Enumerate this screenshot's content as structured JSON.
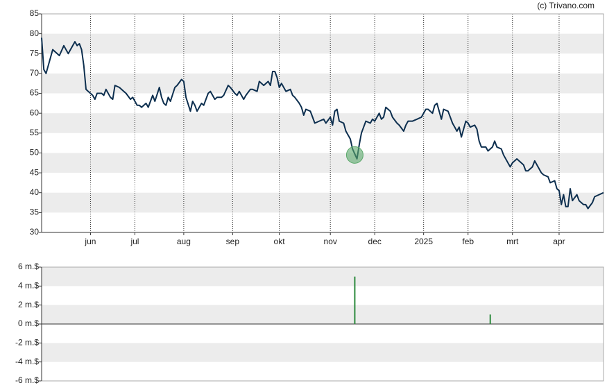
{
  "chart_data": [
    {
      "type": "line",
      "credit": "(c) Trivano.com",
      "xlim": [
        0,
        253
      ],
      "ylim": [
        30,
        85
      ],
      "yticks": [
        30,
        35,
        40,
        45,
        50,
        55,
        60,
        65,
        70,
        75,
        80,
        85
      ],
      "xticks": [
        {
          "value": 22,
          "label": "jun"
        },
        {
          "value": 42,
          "label": "jul"
        },
        {
          "value": 64,
          "label": "aug"
        },
        {
          "value": 86,
          "label": "sep"
        },
        {
          "value": 107,
          "label": "okt"
        },
        {
          "value": 130,
          "label": "nov"
        },
        {
          "value": 150,
          "label": "dec"
        },
        {
          "value": 172,
          "label": "2025"
        },
        {
          "value": 192,
          "label": "feb"
        },
        {
          "value": 212,
          "label": "mrt"
        },
        {
          "value": 233,
          "label": "apr"
        }
      ],
      "xgrid": true,
      "series": [
        {
          "color": "#0d2f4f",
          "x": [
            0,
            1,
            2,
            4,
            5,
            7,
            8,
            10,
            12,
            13,
            15,
            16,
            17,
            18,
            19,
            20,
            21,
            23,
            24,
            25,
            27,
            28,
            29,
            31,
            32,
            33,
            35,
            37,
            38,
            40,
            41,
            43,
            44,
            45,
            47,
            48,
            50,
            51,
            53,
            54,
            55,
            56,
            57,
            58,
            60,
            61,
            63,
            64,
            65,
            67,
            68,
            69,
            70,
            72,
            73,
            75,
            76,
            78,
            79,
            81,
            82,
            84,
            85,
            87,
            88,
            89,
            91,
            92,
            94,
            95,
            97,
            98,
            100,
            102,
            103,
            104,
            105,
            106,
            107,
            108,
            110,
            112,
            113,
            114,
            116,
            117,
            118,
            119,
            121,
            122,
            123,
            125,
            127,
            128,
            130,
            131,
            132,
            133,
            134,
            136,
            137,
            139,
            140,
            142,
            143,
            144,
            145,
            146,
            148,
            149,
            150,
            152,
            153,
            154,
            155,
            157,
            158,
            160,
            161,
            163,
            164,
            165,
            167,
            169,
            171,
            173,
            174,
            176,
            177,
            178,
            180,
            181,
            183,
            184,
            185,
            187,
            188,
            189,
            191,
            192,
            193,
            195,
            196,
            197,
            198,
            200,
            201,
            203,
            204,
            205,
            207,
            208,
            210,
            211,
            212,
            214,
            215,
            217,
            218,
            219,
            221,
            222,
            223,
            225,
            226,
            228,
            229,
            231,
            232,
            233,
            234,
            235,
            236,
            237,
            238,
            239,
            241,
            242,
            244,
            245,
            246,
            248,
            249,
            251,
            253
          ],
          "values": [
            79,
            71,
            70,
            74,
            76,
            75,
            74.5,
            77,
            75,
            76,
            78,
            77,
            77.5,
            76,
            72,
            66,
            65.5,
            64.5,
            63.5,
            65,
            65,
            64.5,
            66,
            64,
            63.5,
            67,
            66.5,
            65.5,
            65,
            63.5,
            64,
            62,
            62,
            61.5,
            62.5,
            61.5,
            64.5,
            63,
            66.5,
            64,
            62.5,
            62,
            64,
            63,
            66.5,
            67,
            68.5,
            68,
            64,
            60.5,
            63,
            62,
            60.5,
            62.5,
            62,
            65,
            65.5,
            63.5,
            64,
            64,
            64.5,
            67,
            66.5,
            65,
            64.5,
            65.5,
            63.5,
            64.5,
            66,
            66,
            65.5,
            68,
            67,
            68,
            67,
            70.5,
            70.5,
            69,
            66.5,
            67.5,
            65.5,
            66,
            64.5,
            64,
            62.5,
            61.5,
            59.5,
            61,
            60.5,
            59,
            57.5,
            58,
            58.5,
            57.5,
            59,
            57,
            60.5,
            61,
            58,
            57.5,
            55.5,
            53.5,
            51,
            48.5,
            52,
            55,
            56.5,
            58,
            57.5,
            58.5,
            58,
            60,
            58.5,
            59,
            61.5,
            60.5,
            59,
            57.5,
            57,
            55.5,
            57,
            58,
            58,
            58.5,
            59,
            61,
            61,
            60,
            62,
            62.5,
            58.5,
            61,
            60.5,
            59,
            57.5,
            55.5,
            56.5,
            54,
            58,
            57.5,
            56.5,
            57,
            56,
            53,
            51.5,
            51.5,
            50.5,
            51.5,
            53,
            51.5,
            51,
            49.5,
            47.5,
            46.5,
            47.5,
            48.5,
            48,
            47,
            45.5,
            45.5,
            46.5,
            48,
            47,
            45,
            44.5,
            44,
            42.5,
            43,
            41,
            40.5,
            37,
            39.5,
            36.5,
            36.5,
            41,
            38,
            39.5,
            38,
            37,
            37,
            36,
            37.5,
            39,
            39.5,
            40
          ]
        }
      ],
      "markers": [
        {
          "x": 141,
          "y": 49.5,
          "color": "#5aa86a"
        }
      ]
    },
    {
      "type": "bar",
      "xlim": [
        0,
        253
      ],
      "ylim": [
        -6,
        6
      ],
      "yticks": [
        {
          "value": -6,
          "label": "-6 m.$"
        },
        {
          "value": -4,
          "label": "-4 m.$"
        },
        {
          "value": -2,
          "label": "-2 m.$"
        },
        {
          "value": 0,
          "label": "0 m.$"
        },
        {
          "value": 2,
          "label": "2 m.$"
        },
        {
          "value": 4,
          "label": "4 m.$"
        },
        {
          "value": 6,
          "label": "6 m.$"
        }
      ],
      "x": [
        141,
        202
      ],
      "values": [
        5,
        1
      ],
      "color": "#2e8b3e"
    }
  ]
}
